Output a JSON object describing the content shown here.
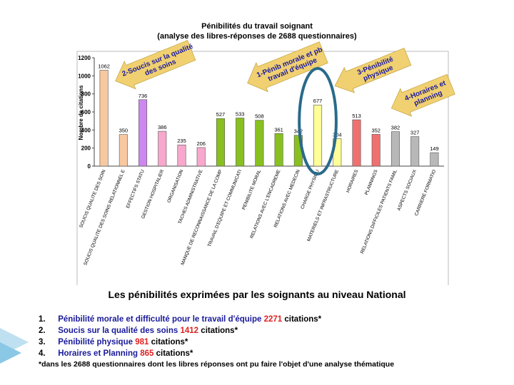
{
  "chart_data": {
    "type": "bar",
    "title": "Pénibilités du travail soignant",
    "subtitle": "(analyse des libres-réponses de 2688 questionnaires)",
    "ylabel": "Nombre de citations",
    "ylim": [
      0,
      1200
    ],
    "yticks": [
      0,
      200,
      400,
      600,
      800,
      1000,
      1200
    ],
    "grid": false,
    "categories": [
      "SOUCIS QUALITE DES SOIN",
      "SOUCIS QUALITE DES SOINS RELATIONNEL E",
      "EFFECTIFS STATU",
      "GESTION HOSPITALIER",
      "ORGANISATION",
      "TACHES ADMINISTRATIVE",
      "MANQUE DE RECONNAISSANCE DE LA COMP",
      "TRAVAIL D'EQUIPE ET COMMUNICATI",
      "PENIBILITE MORAL",
      "RELATIONS AVEC L'ENCADREME",
      "RELATIONS AVEC MEDECIN",
      "CHARGE PHYSIQU",
      "MATERIELS ET INFRASTRUCTURE",
      "HORAIRES",
      "PLANNINGS",
      "RELATIONS DIFFICILES PATIENTS FAMIL",
      "ASPECTS SOCIAUX",
      "CARRIERE FORMATIO"
    ],
    "values": [
      1062,
      350,
      736,
      386,
      235,
      206,
      527,
      533,
      508,
      361,
      342,
      677,
      304,
      513,
      352,
      382,
      327,
      149
    ],
    "value_labels": [
      "1062",
      "350",
      "736",
      "386",
      "235",
      "206",
      "527",
      "533",
      "508",
      "361",
      "342",
      "677",
      "304",
      "513",
      "352",
      "382",
      "327",
      "149"
    ],
    "colors": [
      "#f8c8a0",
      "#f8c8a0",
      "#cc88ee",
      "#f8a8cc",
      "#f8a8cc",
      "#f8a8cc",
      "#88c020",
      "#88c020",
      "#88c020",
      "#88c020",
      "#88c020",
      "#ffff99",
      "#ffff99",
      "#f07070",
      "#f07070",
      "#b8b8b8",
      "#b8b8b8",
      "#b8b8b8"
    ],
    "annotations": [
      "2-Soucis sur la qualité des soins",
      "1-Pénib morale et pb travail d'équipe",
      "3-Pénibilité physique",
      "4-Horaires et planning"
    ]
  },
  "heading": "Les pénibilités exprimées par les soignants au niveau National",
  "summary": [
    {
      "num": "1.",
      "label": "Pénibilité morale et difficulté pour le travail d'équipe",
      "count": "2271",
      "suffix": "citations*"
    },
    {
      "num": "2.",
      "label": "Soucis sur la qualité des soins",
      "count": "1412",
      "suffix": "citations*"
    },
    {
      "num": "3.",
      "label": "Pénibilité physique",
      "count": "981",
      "suffix": "citations*"
    },
    {
      "num": "4.",
      "label": "Horaires et Planning",
      "count": "865",
      "suffix": "citations*"
    }
  ],
  "footnote": "*dans les 2688 questionnaires dont les libres réponses ont pu faire l'objet d'une analyse thématique",
  "accent_colors": {
    "arrow": "#f0d070",
    "arrow_text": "#1a1aa0",
    "ellipse": "#2a6a8a",
    "label": "#1a1a9a",
    "count": "#e02020"
  }
}
